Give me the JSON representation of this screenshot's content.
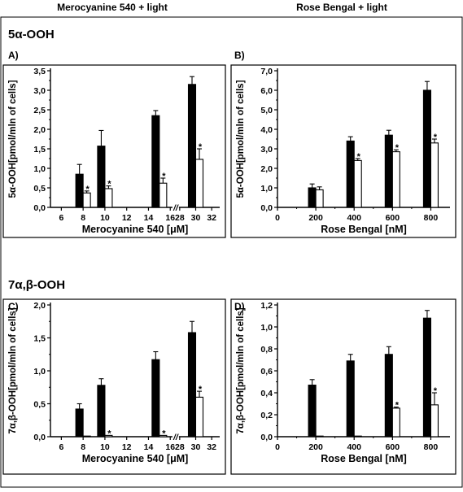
{
  "header": {
    "left_column": "Merocyanine 540 + light",
    "right_column": "Rose Bengal + light",
    "section_top": "5α-OOH",
    "section_bottom": "7α,β-OOH"
  },
  "colors": {
    "treated_bar": "#000000",
    "control_bar": "#ffffff",
    "outline": "#000000"
  },
  "chart_data": [
    {
      "id": "A",
      "panel_label": "A)",
      "type": "bar",
      "xlabel": "Merocyanine 540 [μM]",
      "ylabel": "5α-OOH[pmol/mln of cells]",
      "ylim": [
        0,
        3.5
      ],
      "yticks": [
        "0,0",
        "0,5",
        "1,0",
        "1,5",
        "2,0",
        "2,5",
        "3,0",
        "3,5"
      ],
      "xticks": [
        "6",
        "8",
        "10",
        "12",
        "14",
        "16",
        "28",
        "30",
        "32"
      ],
      "axis_break": "//",
      "categories": [
        8,
        10,
        15,
        30
      ],
      "series": [
        {
          "values": [
            0.85,
            1.57,
            2.35,
            3.15
          ],
          "errors": [
            0.25,
            0.4,
            0.13,
            0.2
          ]
        },
        {
          "values": [
            0.37,
            0.48,
            0.62,
            1.23
          ],
          "errors": [
            0.05,
            0.07,
            0.13,
            0.27
          ]
        }
      ],
      "significance": [
        false,
        false,
        false,
        false,
        true,
        true,
        true,
        true
      ]
    },
    {
      "id": "B",
      "panel_label": "B)",
      "type": "bar",
      "xlabel": "Rose Bengal [nM]",
      "ylabel": "5α-OOH[pmol/mln of cells]",
      "ylim": [
        0,
        7.0
      ],
      "yticks": [
        "0,0",
        "1,0",
        "2,0",
        "3,0",
        "4,0",
        "5,0",
        "6,0",
        "7,0"
      ],
      "xticks": [
        "0",
        "200",
        "400",
        "600",
        "800"
      ],
      "categories": [
        200,
        400,
        600,
        800
      ],
      "series": [
        {
          "values": [
            1.0,
            3.4,
            3.7,
            6.0
          ],
          "errors": [
            0.2,
            0.22,
            0.25,
            0.45
          ]
        },
        {
          "values": [
            0.9,
            2.4,
            2.85,
            3.3
          ],
          "errors": [
            0.15,
            0.1,
            0.1,
            0.2
          ]
        }
      ],
      "significance": [
        false,
        false,
        false,
        false,
        false,
        true,
        true,
        true
      ]
    },
    {
      "id": "C",
      "panel_label": "C)",
      "type": "bar",
      "xlabel": "Merocyanine 540 [μM]",
      "ylabel": "7α,β-OOH[pmol/mln of cells]",
      "ylim": [
        0,
        2.0
      ],
      "yticks": [
        "0,0",
        "0,5",
        "1,0",
        "1,5",
        "2,0"
      ],
      "xticks": [
        "6",
        "8",
        "10",
        "12",
        "14",
        "16",
        "28",
        "30",
        "32"
      ],
      "axis_break": "//",
      "categories": [
        8,
        10,
        15,
        30
      ],
      "series": [
        {
          "values": [
            0.42,
            0.78,
            1.17,
            1.58
          ],
          "errors": [
            0.08,
            0.1,
            0.12,
            0.17
          ]
        },
        {
          "values": [
            0.0,
            0.02,
            0.02,
            0.6
          ],
          "errors": [
            0.0,
            0.0,
            0.0,
            0.09
          ]
        }
      ],
      "significance": [
        false,
        false,
        false,
        false,
        false,
        true,
        true,
        true
      ]
    },
    {
      "id": "D",
      "panel_label": "D)",
      "type": "bar",
      "xlabel": "Rose Bengal [nM]",
      "ylabel": "7α,β-OOH[pmol/mln of cells]",
      "ylim": [
        0,
        1.2
      ],
      "yticks": [
        "0,0",
        "0,2",
        "0,4",
        "0,6",
        "0,8",
        "1,0",
        "1,2"
      ],
      "xticks": [
        "0",
        "200",
        "400",
        "600",
        "800"
      ],
      "categories": [
        200,
        400,
        600,
        800
      ],
      "series": [
        {
          "values": [
            0.47,
            0.69,
            0.75,
            1.08
          ],
          "errors": [
            0.05,
            0.06,
            0.07,
            0.07
          ]
        },
        {
          "values": [
            0.0,
            0.0,
            0.26,
            0.29
          ],
          "errors": [
            0.0,
            0.0,
            0.01,
            0.11
          ]
        }
      ],
      "significance": [
        false,
        false,
        false,
        false,
        false,
        false,
        true,
        true
      ]
    }
  ]
}
